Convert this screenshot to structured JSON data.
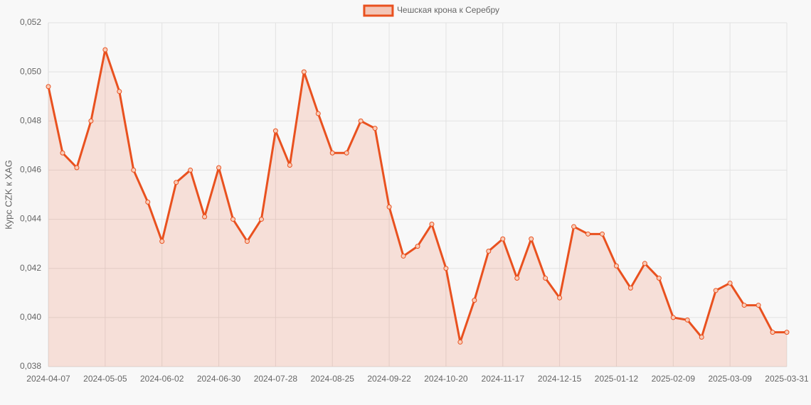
{
  "chart_data": {
    "type": "line",
    "y_label": "Курс CZK к XAG",
    "categories": [
      "2024-04-07",
      null,
      null,
      null,
      "2024-05-05",
      null,
      null,
      null,
      "2024-06-02",
      null,
      null,
      null,
      "2024-06-30",
      null,
      null,
      null,
      "2024-07-28",
      null,
      null,
      null,
      "2024-08-25",
      null,
      null,
      null,
      "2024-09-22",
      null,
      null,
      null,
      "2024-10-20",
      null,
      null,
      null,
      "2024-11-17",
      null,
      null,
      null,
      "2024-12-15",
      null,
      null,
      null,
      "2025-01-12",
      null,
      null,
      null,
      "2025-02-09",
      null,
      null,
      null,
      "2025-03-09",
      null,
      null,
      null,
      "2025-03-31"
    ],
    "series": [
      {
        "name": "Чешская крона к Серебру",
        "color": "#e9511f",
        "values": [
          0.0494,
          0.0467,
          0.0461,
          0.048,
          0.0509,
          0.0492,
          0.046,
          0.0447,
          0.0431,
          0.0455,
          0.046,
          0.0441,
          0.0461,
          0.044,
          0.0431,
          0.044,
          0.0476,
          0.0462,
          0.05,
          0.0483,
          0.0467,
          0.0467,
          0.048,
          0.0477,
          0.0445,
          0.0425,
          0.0429,
          0.0438,
          0.042,
          0.039,
          0.0407,
          0.0427,
          0.0432,
          0.0416,
          0.0432,
          0.0416,
          0.0408,
          0.0437,
          0.0434,
          0.0434,
          0.0421,
          0.0412,
          0.0422,
          0.0416,
          0.04,
          0.0399,
          0.0392,
          0.0411,
          0.0414,
          0.0405,
          0.0405,
          0.0394,
          0.0394
        ]
      }
    ],
    "ylim": [
      0.038,
      0.052
    ],
    "yticks": [
      {
        "value": 0.038,
        "label": "0,038"
      },
      {
        "value": 0.04,
        "label": "0,040"
      },
      {
        "value": 0.042,
        "label": "0,042"
      },
      {
        "value": 0.044,
        "label": "0,044"
      },
      {
        "value": 0.046,
        "label": "0,046"
      },
      {
        "value": 0.048,
        "label": "0,048"
      },
      {
        "value": 0.05,
        "label": "0,050"
      },
      {
        "value": 0.052,
        "label": "0,052"
      }
    ],
    "grid": true,
    "legend": "top",
    "fill": true
  }
}
